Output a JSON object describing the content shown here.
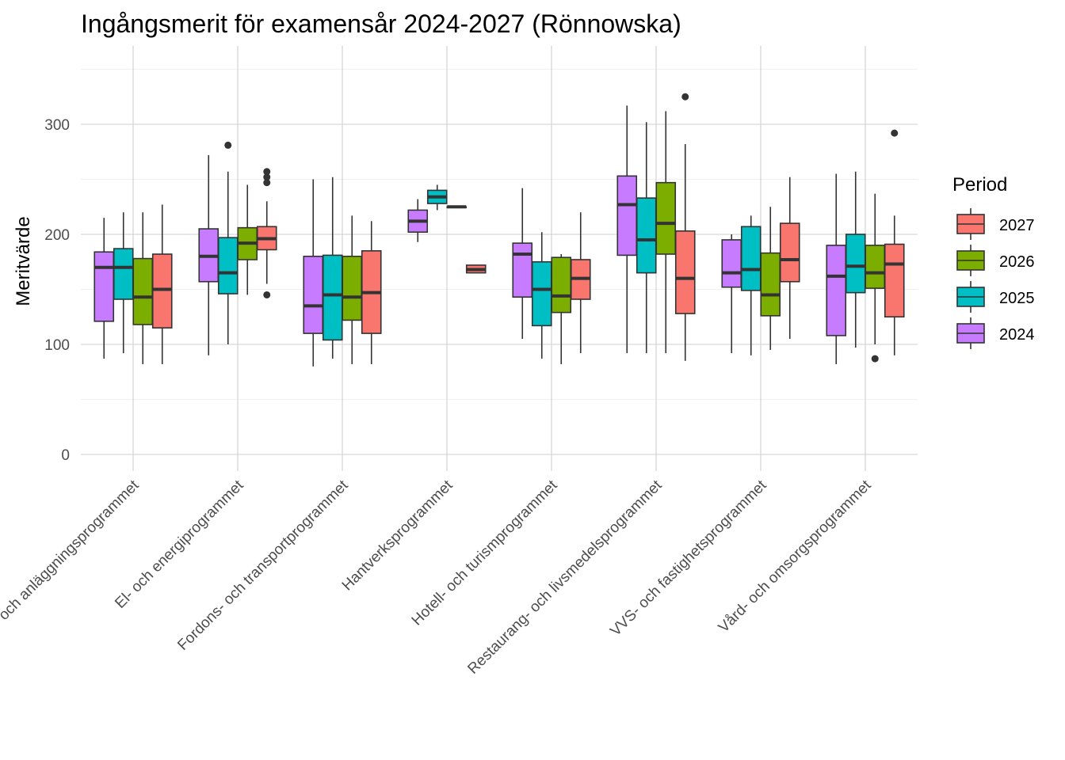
{
  "chart_data": {
    "type": "box",
    "title": "Ingångsmerit för examensår 2024-2027 (Rönnowska)",
    "xlabel": "",
    "ylabel": "Meritvärde",
    "ylim": [
      -15,
      350
    ],
    "yticks": [
      0,
      100,
      200,
      300
    ],
    "grid": true,
    "legend": {
      "title": "Period",
      "position": "right",
      "order": [
        "2027",
        "2026",
        "2025",
        "2024"
      ]
    },
    "colors": {
      "2024": "#C77CFF",
      "2025": "#00BFC4",
      "2026": "#7CAE00",
      "2027": "#F8766D"
    },
    "categories": [
      "Bygg- och anläggningsprogrammet",
      "El- och energiprogrammet",
      "Fordons- och transportprogrammet",
      "Hantverksprogrammet",
      "Hotell- och turismprogrammet",
      "Restaurang- och livsmedelsprogrammet",
      "VVS- och fastighetsprogrammet",
      "Vård- och omsorgsprogrammet"
    ],
    "series": [
      {
        "name": "2024",
        "boxes": [
          {
            "min": 87,
            "q1": 121,
            "median": 170,
            "q3": 184,
            "max": 215,
            "outliers": []
          },
          {
            "min": 90,
            "q1": 157,
            "median": 180,
            "q3": 205,
            "max": 272,
            "outliers": []
          },
          {
            "min": 80,
            "q1": 110,
            "median": 135,
            "q3": 180,
            "max": 250,
            "outliers": []
          },
          {
            "min": 193,
            "q1": 202,
            "median": 212,
            "q3": 222,
            "max": 232,
            "outliers": []
          },
          {
            "min": 105,
            "q1": 143,
            "median": 182,
            "q3": 192,
            "max": 242,
            "outliers": []
          },
          {
            "min": 92,
            "q1": 181,
            "median": 227,
            "q3": 253,
            "max": 317,
            "outliers": []
          },
          {
            "min": 92,
            "q1": 152,
            "median": 165,
            "q3": 195,
            "max": 200,
            "outliers": []
          },
          {
            "min": 82,
            "q1": 108,
            "median": 162,
            "q3": 190,
            "max": 255,
            "outliers": []
          }
        ]
      },
      {
        "name": "2025",
        "boxes": [
          {
            "min": 92,
            "q1": 141,
            "median": 170,
            "q3": 187,
            "max": 220,
            "outliers": []
          },
          {
            "min": 100,
            "q1": 146,
            "median": 165,
            "q3": 197,
            "max": 257,
            "outliers": [
              281
            ]
          },
          {
            "min": 87,
            "q1": 104,
            "median": 145,
            "q3": 181,
            "max": 252,
            "outliers": []
          },
          {
            "min": 222,
            "q1": 228,
            "median": 234,
            "q3": 240,
            "max": 245,
            "outliers": []
          },
          {
            "min": 87,
            "q1": 117,
            "median": 150,
            "q3": 175,
            "max": 202,
            "outliers": []
          },
          {
            "min": 92,
            "q1": 165,
            "median": 195,
            "q3": 233,
            "max": 302,
            "outliers": []
          },
          {
            "min": 90,
            "q1": 149,
            "median": 168,
            "q3": 207,
            "max": 217,
            "outliers": []
          },
          {
            "min": 97,
            "q1": 147,
            "median": 171,
            "q3": 200,
            "max": 257,
            "outliers": []
          }
        ]
      },
      {
        "name": "2026",
        "boxes": [
          {
            "min": 82,
            "q1": 118,
            "median": 143,
            "q3": 178,
            "max": 220,
            "outliers": []
          },
          {
            "min": 145,
            "q1": 177,
            "median": 192,
            "q3": 206,
            "max": 245,
            "outliers": []
          },
          {
            "min": 82,
            "q1": 122,
            "median": 143,
            "q3": 180,
            "max": 217,
            "outliers": []
          },
          {
            "min": 225,
            "q1": 225,
            "median": 225,
            "q3": 225,
            "max": 225,
            "outliers": []
          },
          {
            "min": 82,
            "q1": 129,
            "median": 144,
            "q3": 179,
            "max": 182,
            "outliers": []
          },
          {
            "min": 92,
            "q1": 182,
            "median": 210,
            "q3": 247,
            "max": 312,
            "outliers": []
          },
          {
            "min": 95,
            "q1": 126,
            "median": 145,
            "q3": 183,
            "max": 225,
            "outliers": []
          },
          {
            "min": 100,
            "q1": 151,
            "median": 165,
            "q3": 190,
            "max": 237,
            "outliers": [
              87
            ]
          }
        ]
      },
      {
        "name": "2027",
        "boxes": [
          {
            "min": 82,
            "q1": 115,
            "median": 150,
            "q3": 182,
            "max": 227,
            "outliers": []
          },
          {
            "min": 155,
            "q1": 186,
            "median": 196,
            "q3": 207,
            "max": 230,
            "outliers": [
              145,
              247,
              252,
              257
            ]
          },
          {
            "min": 82,
            "q1": 110,
            "median": 147,
            "q3": 185,
            "max": 212,
            "outliers": []
          },
          {
            "min": 165,
            "q1": 165,
            "median": 168,
            "q3": 172,
            "max": 172,
            "outliers": []
          },
          {
            "min": 92,
            "q1": 141,
            "median": 160,
            "q3": 177,
            "max": 220,
            "outliers": []
          },
          {
            "min": 85,
            "q1": 128,
            "median": 160,
            "q3": 203,
            "max": 282,
            "outliers": [
              325
            ]
          },
          {
            "min": 105,
            "q1": 157,
            "median": 177,
            "q3": 210,
            "max": 252,
            "outliers": []
          },
          {
            "min": 90,
            "q1": 125,
            "median": 173,
            "q3": 191,
            "max": 217,
            "outliers": [
              292
            ]
          }
        ]
      }
    ]
  }
}
